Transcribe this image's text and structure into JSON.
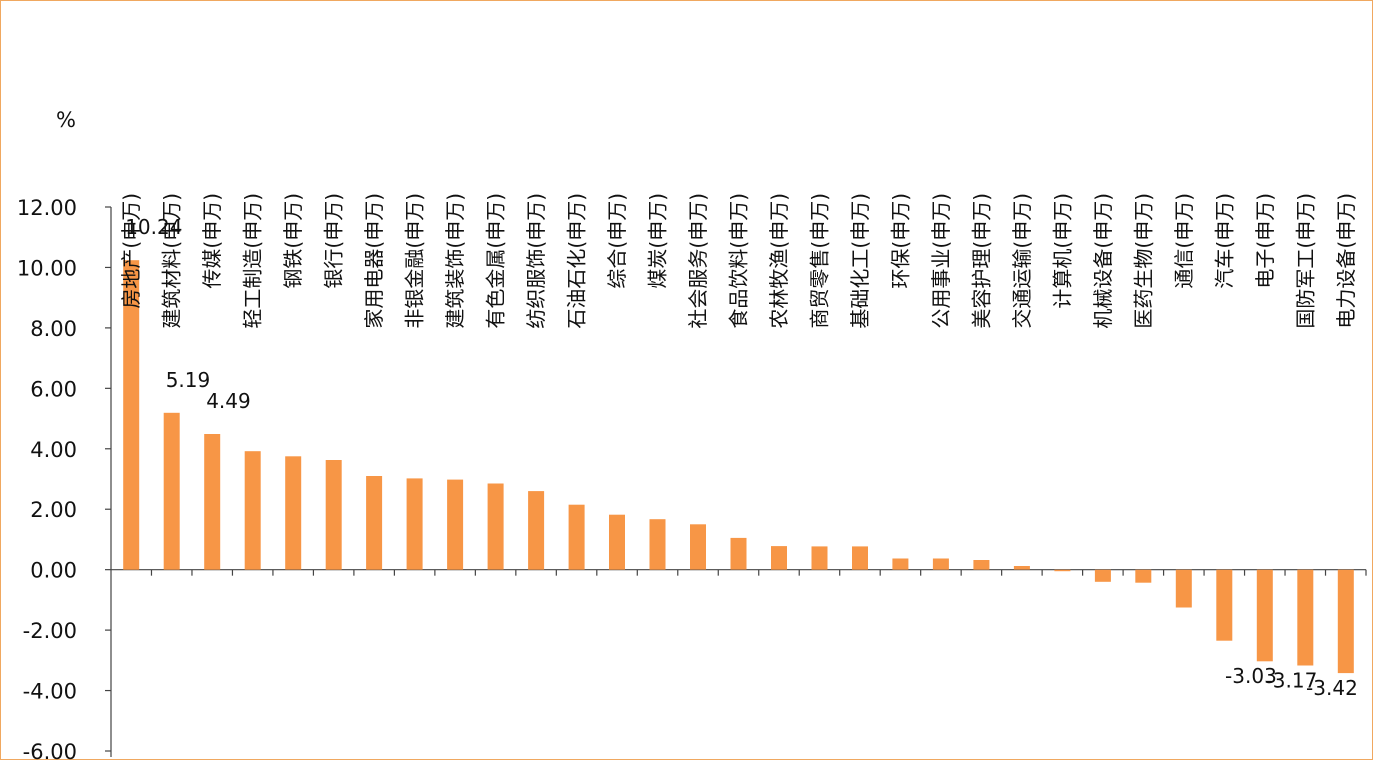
{
  "chart_data": {
    "type": "bar",
    "unit_label": "%",
    "categories": [
      "房地产(申万)",
      "建筑材料(申万)",
      "传媒(申万)",
      "轻工制造(申万)",
      "钢铁(申万)",
      "银行(申万)",
      "家用电器(申万)",
      "非银金融(申万)",
      "建筑装饰(申万)",
      "有色金属(申万)",
      "纺织服饰(申万)",
      "石油石化(申万)",
      "综合(申万)",
      "煤炭(申万)",
      "社会服务(申万)",
      "食品饮料(申万)",
      "农林牧渔(申万)",
      "商贸零售(申万)",
      "基础化工(申万)",
      "环保(申万)",
      "公用事业(申万)",
      "美容护理(申万)",
      "交通运输(申万)",
      "计算机(申万)",
      "机械设备(申万)",
      "医药生物(申万)",
      "通信(申万)",
      "汽车(申万)",
      "电子(申万)",
      "国防军工(申万)",
      "电力设备(申万)"
    ],
    "values": [
      10.24,
      5.19,
      4.49,
      3.92,
      3.75,
      3.63,
      3.1,
      3.02,
      2.98,
      2.85,
      2.6,
      2.15,
      1.82,
      1.67,
      1.5,
      1.05,
      0.78,
      0.77,
      0.77,
      0.37,
      0.37,
      0.32,
      0.12,
      -0.05,
      -0.4,
      -0.43,
      -1.25,
      -2.35,
      -3.03,
      -3.17,
      -3.42
    ],
    "data_labels": [
      {
        "index": 0,
        "text": "10.24"
      },
      {
        "index": 1,
        "text": "5.19"
      },
      {
        "index": 2,
        "text": "4.49"
      },
      {
        "index": 28,
        "text": "-3.03"
      },
      {
        "index": 29,
        "text": "-3.17"
      },
      {
        "index": 30,
        "text": "-3.42"
      }
    ],
    "yticks": [
      "12.00",
      "10.00",
      "8.00",
      "6.00",
      "4.00",
      "2.00",
      "0.00",
      "-2.00",
      "-4.00",
      "-6.00"
    ],
    "ylim": [
      -6,
      12
    ],
    "bar_color": "#F79646",
    "frame_color": "#F0A860",
    "grid": false,
    "legend": "none"
  }
}
